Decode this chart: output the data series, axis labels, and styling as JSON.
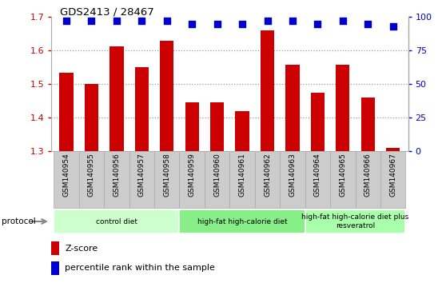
{
  "title": "GDS2413 / 28467",
  "samples": [
    "GSM140954",
    "GSM140955",
    "GSM140956",
    "GSM140957",
    "GSM140958",
    "GSM140959",
    "GSM140960",
    "GSM140961",
    "GSM140962",
    "GSM140963",
    "GSM140964",
    "GSM140965",
    "GSM140966",
    "GSM140967"
  ],
  "z_scores": [
    1.535,
    1.5,
    1.613,
    1.55,
    1.63,
    1.447,
    1.445,
    1.42,
    1.66,
    1.557,
    1.475,
    1.558,
    1.46,
    1.31
  ],
  "percentile_ranks": [
    97,
    97,
    97,
    97,
    97,
    95,
    95,
    95,
    97,
    97,
    95,
    97,
    95,
    93
  ],
  "ylim_left": [
    1.3,
    1.7
  ],
  "ylim_right": [
    0,
    100
  ],
  "yticks_left": [
    1.3,
    1.4,
    1.5,
    1.6,
    1.7
  ],
  "yticks_right": [
    0,
    25,
    50,
    75,
    100
  ],
  "bar_color": "#cc0000",
  "dot_color": "#0000cc",
  "protocol_groups": [
    {
      "label": "control diet",
      "start": 0,
      "end": 4,
      "color": "#ccffcc"
    },
    {
      "label": "high-fat high-calorie diet",
      "start": 5,
      "end": 9,
      "color": "#88ee88"
    },
    {
      "label": "high-fat high-calorie diet plus\nresveratrol",
      "start": 10,
      "end": 13,
      "color": "#aaffaa"
    }
  ],
  "protocol_label": "protocol",
  "legend_zscore_label": "Z-score",
  "legend_percentile_label": "percentile rank within the sample",
  "dot_size": 36,
  "bar_width": 0.55,
  "grid_yticks": [
    1.4,
    1.5,
    1.6
  ],
  "grid_color": "#999999",
  "bar_color_left": "#cc0000",
  "dot_color_blue": "#0000cc",
  "xticklabel_bg": "#cccccc",
  "xticklabel_border": "#888888"
}
